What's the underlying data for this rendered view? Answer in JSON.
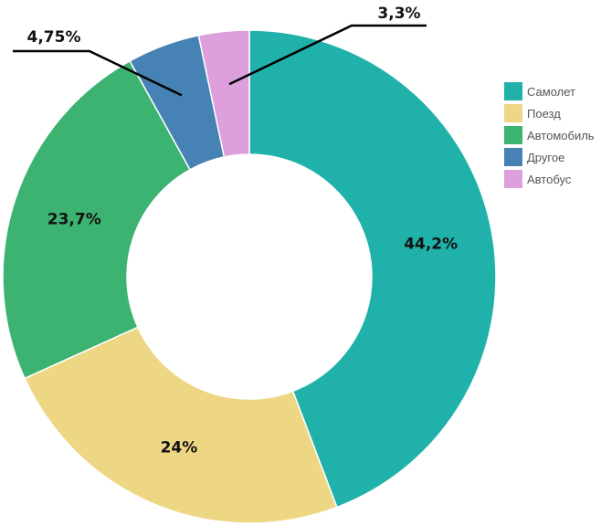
{
  "chart_data": {
    "type": "pie",
    "donut": true,
    "title": "",
    "legend_position": "right",
    "slices": [
      {
        "name": "Самолет",
        "value": 44.2,
        "label": "44,2%",
        "color": "#20B2AA"
      },
      {
        "name": "Поезд",
        "value": 24,
        "label": "24%",
        "color": "#EED784"
      },
      {
        "name": "Автомобиль",
        "value": 23.7,
        "label": "23,7%",
        "color": "#3CB371"
      },
      {
        "name": "Другое",
        "value": 4.75,
        "label": "4,75%",
        "color": "#4682B4"
      },
      {
        "name": "Автобус",
        "value": 3.3,
        "label": "3,3%",
        "color": "#DDA0DD"
      }
    ]
  }
}
